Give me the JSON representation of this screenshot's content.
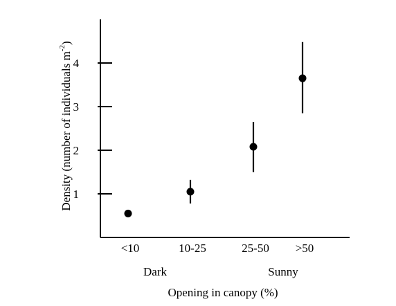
{
  "chart_data": {
    "type": "scatter",
    "categories": [
      "<10",
      "10-25",
      "25-50",
      ">50"
    ],
    "values": [
      0.55,
      1.05,
      2.08,
      3.65
    ],
    "error_bars": [
      {
        "low": 0.52,
        "high": 0.6
      },
      {
        "low": 0.78,
        "high": 1.32
      },
      {
        "low": 1.5,
        "high": 2.65
      },
      {
        "low": 2.85,
        "high": 4.48
      }
    ],
    "yticks": [
      "1",
      "2",
      "3",
      "4"
    ],
    "ylim": [
      0,
      5
    ],
    "xlabel": "Opening in canopy (%)",
    "ylabel": "Density (number of individuals m",
    "ylabel_superscript": "-2",
    "ylabel_close": ")",
    "group_labels": [
      "Dark",
      "Sunny"
    ],
    "grid": false
  }
}
